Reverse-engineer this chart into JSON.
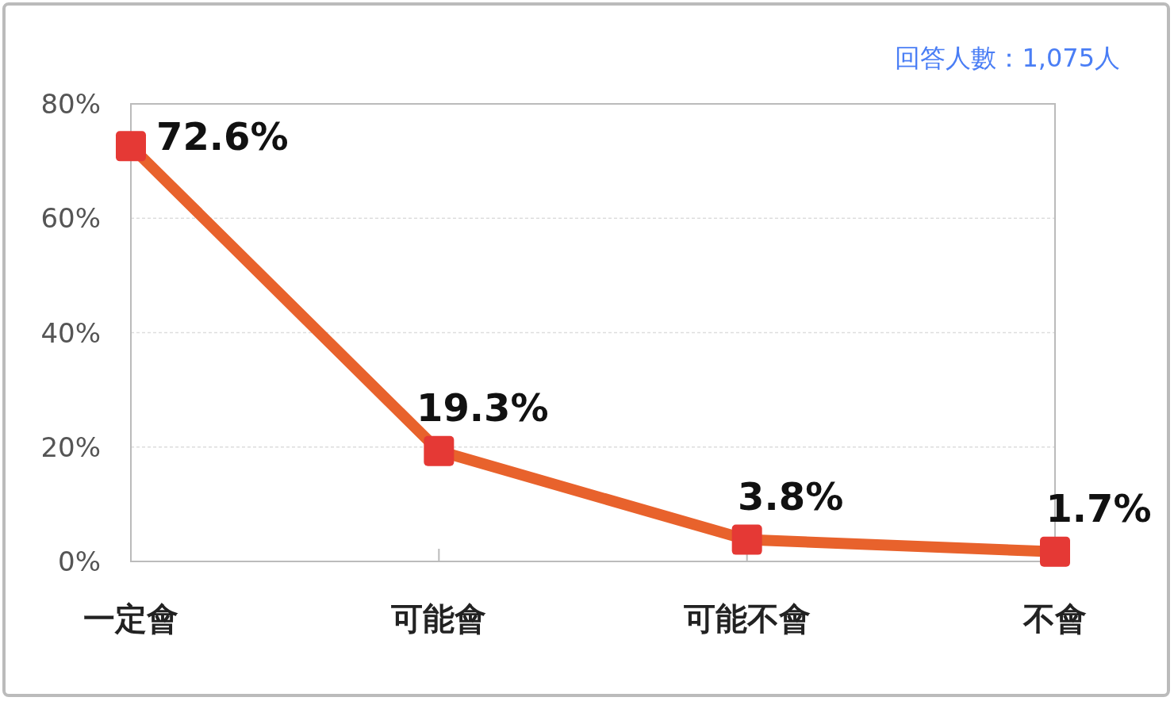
{
  "chart_data": {
    "type": "line",
    "categories": [
      "一定會",
      "可能會",
      "可能不會",
      "不會"
    ],
    "series": [
      {
        "color": "#e8622c",
        "values": [
          72.6,
          19.3,
          3.8,
          1.7
        ],
        "value_labels": [
          "72.6%",
          "19.3%",
          "3.8%",
          "1.7%"
        ]
      }
    ],
    "marker": "square",
    "line_style": "solid",
    "ylim": [
      0,
      80
    ],
    "yticks": [
      {
        "value": 0,
        "label": "0%"
      },
      {
        "value": 20,
        "label": "20%"
      },
      {
        "value": 40,
        "label": "40%"
      },
      {
        "value": 60,
        "label": "60%"
      },
      {
        "value": 80,
        "label": "80%"
      }
    ],
    "grid": "y",
    "annotations": [
      "回答人數：1,075人"
    ]
  }
}
